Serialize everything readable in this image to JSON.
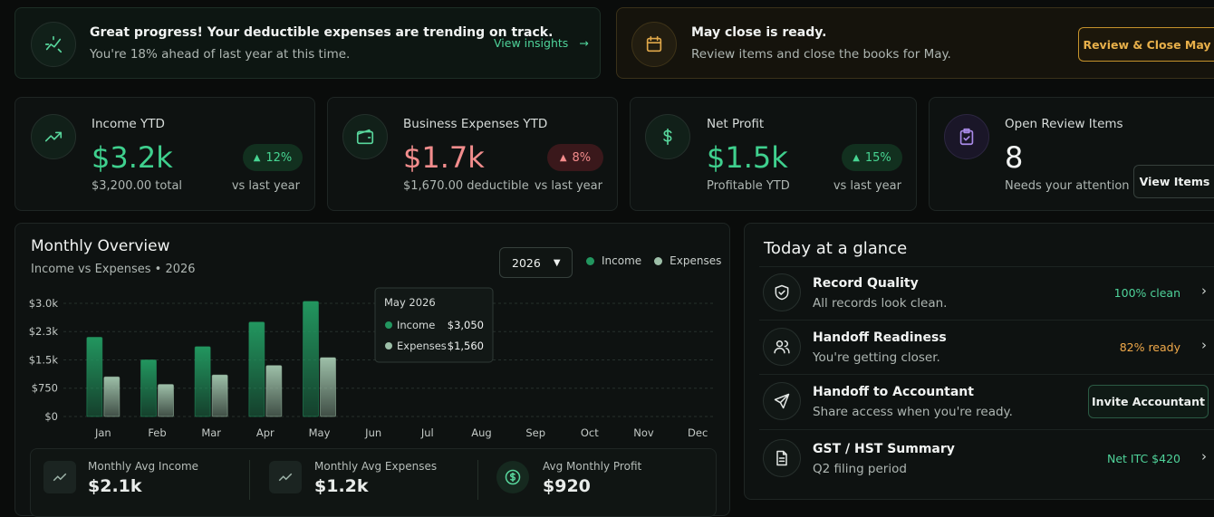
{
  "banners": [
    {
      "title": "Great progress! Your deductible expenses are trending on track.",
      "subtitle": "You're 18% ahead of last year at this time.",
      "action": "View insights"
    },
    {
      "title": "May close is ready.",
      "subtitle": "Review items and close the books for May.",
      "action": "Review & Close May"
    }
  ],
  "kpis": [
    {
      "label": "Income YTD",
      "value": "$3.2k",
      "detail": "$3,200.00 total",
      "change": "12%",
      "change_note": "vs last year"
    },
    {
      "label": "Business Expenses YTD",
      "value": "$1.7k",
      "detail": "$1,670.00 deductible",
      "change": "8%",
      "change_note": "vs last year"
    },
    {
      "label": "Net Profit",
      "value": "$1.5k",
      "detail": "Profitable YTD",
      "change": "15%",
      "change_note": "vs last year"
    },
    {
      "label": "Open Review Items",
      "value": 8,
      "detail": "Needs your attention",
      "action": "View Items"
    }
  ],
  "overview": {
    "title": "Monthly Overview",
    "subtitle": "Income vs Expenses • 2026",
    "year_select": "2026",
    "summary": [
      {
        "label": "Monthly Avg Income",
        "value": "$2.1k"
      },
      {
        "label": "Monthly Avg Expenses",
        "value": "$1.2k"
      },
      {
        "label": "Avg Monthly Profit",
        "value": "$920"
      }
    ]
  },
  "chart_data": {
    "type": "bar",
    "categories": [
      "Jan",
      "Feb",
      "Mar",
      "Apr",
      "May",
      "Jun",
      "Jul",
      "Aug",
      "Sep",
      "Oct",
      "Nov",
      "Dec"
    ],
    "series": [
      {
        "name": "Income",
        "color": "#22965f",
        "values": [
          2100,
          1500,
          1850,
          2500,
          3050,
          null,
          null,
          null,
          null,
          null,
          null,
          null
        ]
      },
      {
        "name": "Expenses",
        "color": "#9dbfa8",
        "values": [
          1050,
          850,
          1100,
          1350,
          1560,
          null,
          null,
          null,
          null,
          null,
          null,
          null
        ]
      }
    ],
    "ylim": [
      0,
      3100
    ],
    "yticks": [
      {
        "value": 0,
        "label": "$0"
      },
      {
        "value": 750,
        "label": "$750"
      },
      {
        "value": 1500,
        "label": "$1.5k"
      },
      {
        "value": 2250,
        "label": "$2.3k"
      },
      {
        "value": 3000,
        "label": "$3.0k"
      }
    ],
    "grid": true,
    "tooltip": {
      "title": "May 2026",
      "rows": [
        {
          "name": "Income",
          "value": "$3,050"
        },
        {
          "name": "Expenses",
          "value": "$1,560"
        }
      ]
    }
  },
  "glance": {
    "title": "Today at a glance",
    "items": [
      {
        "title": "Record Quality",
        "subtitle": "All records look clean.",
        "status": "100% clean"
      },
      {
        "title": "Handoff Readiness",
        "subtitle": "You're getting closer.",
        "status": "82% ready"
      },
      {
        "title": "Handoff to Accountant",
        "subtitle": "Share access when you're ready.",
        "action": "Invite Accountant"
      },
      {
        "title": "GST / HST Summary",
        "subtitle": "Q2 filing period",
        "status": "Net ITC $420"
      }
    ]
  }
}
